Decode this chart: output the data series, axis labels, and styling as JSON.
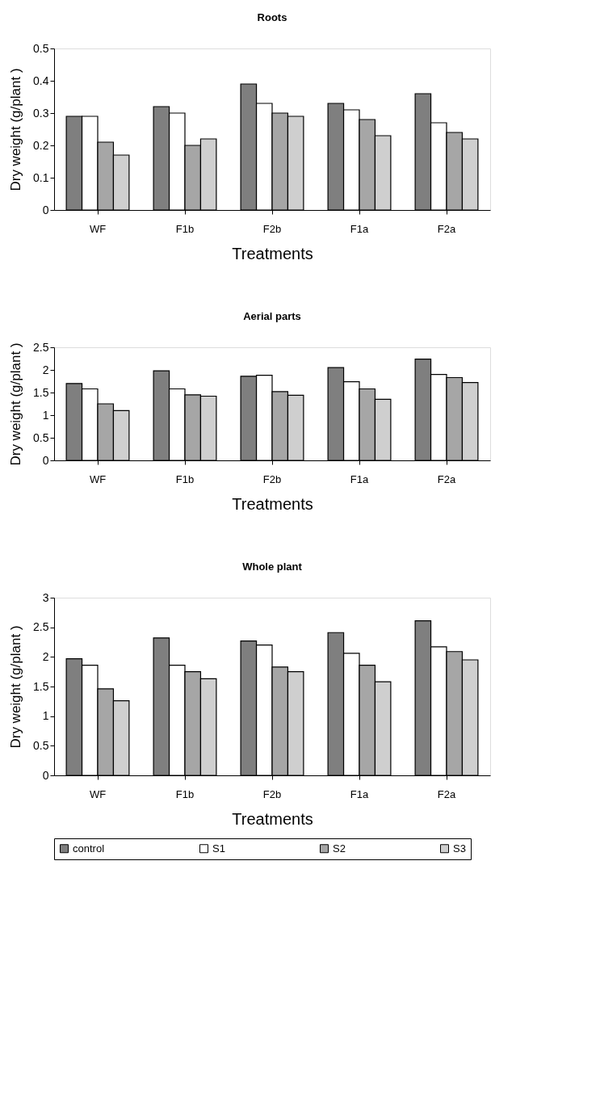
{
  "chart_data": [
    {
      "type": "bar",
      "title": "Roots",
      "xlabel": "Treatments",
      "ylabel": "Dry weight (g/plant )",
      "categories": [
        "WF",
        "F1b",
        "F2b",
        "F1a",
        "F2a"
      ],
      "ylim": [
        0,
        0.5
      ],
      "yticks": [
        0,
        0.1,
        0.2,
        0.3,
        0.4,
        0.5
      ],
      "grid": false,
      "legend": false,
      "series": [
        {
          "color": "#7f7f7f",
          "values": [
            0.29,
            0.32,
            0.39,
            0.33,
            0.36
          ]
        },
        {
          "color": "#ffffff",
          "values": [
            0.29,
            0.3,
            0.33,
            0.31,
            0.27
          ]
        },
        {
          "color": "#a6a6a6",
          "values": [
            0.21,
            0.2,
            0.3,
            0.28,
            0.24
          ]
        },
        {
          "color": "#cfcfcf",
          "values": [
            0.17,
            0.22,
            0.29,
            0.23,
            0.22
          ]
        }
      ]
    },
    {
      "type": "bar",
      "title": "Aerial parts",
      "xlabel": "Treatments",
      "ylabel": "Dry weight (g/plant )",
      "categories": [
        "WF",
        "F1b",
        "F2b",
        "F1a",
        "F2a"
      ],
      "ylim": [
        0,
        2.5
      ],
      "yticks": [
        0,
        0.5,
        1,
        1.5,
        2,
        2.5
      ],
      "grid": false,
      "legend": false,
      "series": [
        {
          "color": "#7f7f7f",
          "values": [
            1.7,
            1.98,
            1.86,
            2.05,
            2.24
          ]
        },
        {
          "color": "#ffffff",
          "values": [
            1.58,
            1.58,
            1.88,
            1.74,
            1.9
          ]
        },
        {
          "color": "#a6a6a6",
          "values": [
            1.25,
            1.45,
            1.52,
            1.58,
            1.83
          ]
        },
        {
          "color": "#cfcfcf",
          "values": [
            1.1,
            1.42,
            1.44,
            1.35,
            1.72
          ]
        }
      ]
    },
    {
      "type": "bar",
      "title": "Whole plant",
      "xlabel": "Treatments",
      "ylabel": "Dry weight (g/plant )",
      "categories": [
        "WF",
        "F1b",
        "F2b",
        "F1a",
        "F2a"
      ],
      "ylim": [
        0,
        3
      ],
      "yticks": [
        0,
        0.5,
        1,
        1.5,
        2,
        2.5,
        3
      ],
      "grid": false,
      "legend": "bottom",
      "series": [
        {
          "name": "control",
          "color": "#7f7f7f",
          "values": [
            1.97,
            2.32,
            2.27,
            2.41,
            2.61
          ]
        },
        {
          "name": "S1",
          "color": "#ffffff",
          "values": [
            1.86,
            1.86,
            2.2,
            2.06,
            2.17
          ]
        },
        {
          "name": "S2",
          "color": "#a6a6a6",
          "values": [
            1.46,
            1.75,
            1.83,
            1.86,
            2.09
          ]
        },
        {
          "name": "S3",
          "color": "#cfcfcf",
          "values": [
            1.26,
            1.63,
            1.75,
            1.58,
            1.95
          ]
        }
      ]
    }
  ]
}
